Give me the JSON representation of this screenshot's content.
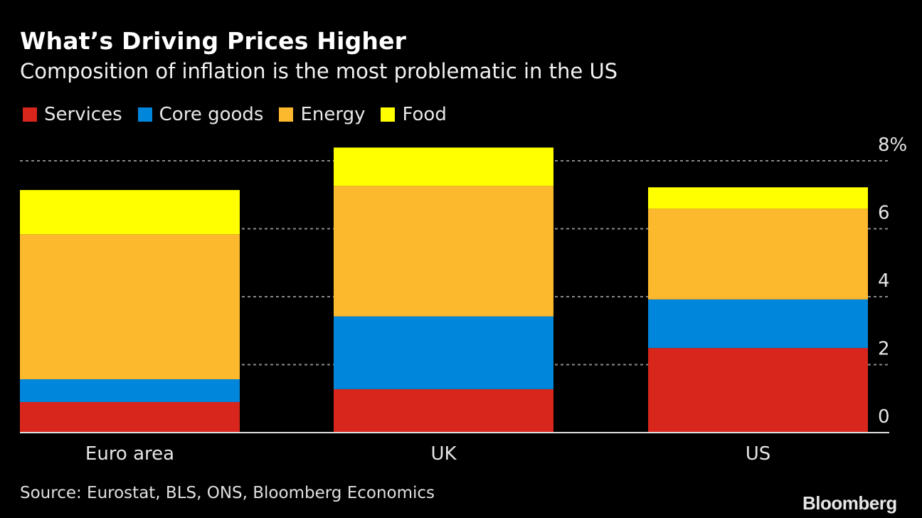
{
  "header": {
    "title": "What’s Driving Prices Higher",
    "subtitle": "Composition of inflation is the most problematic in the US"
  },
  "footer": {
    "source": "Source: Eurostat, BLS, ONS, Bloomberg Economics",
    "brand": "Bloomberg"
  },
  "chart_data": {
    "type": "bar",
    "stacked": true,
    "title": "What’s Driving Prices Higher",
    "subtitle": "Composition of inflation is the most problematic in the US",
    "categories": [
      "Euro area",
      "UK",
      "US"
    ],
    "series": [
      {
        "name": "Services",
        "color": "#d9261c",
        "values": [
          0.9,
          1.28,
          2.49
        ]
      },
      {
        "name": "Core goods",
        "color": "#0086db",
        "values": [
          0.67,
          2.14,
          1.43
        ]
      },
      {
        "name": "Energy",
        "color": "#fdb92e",
        "values": [
          4.27,
          3.84,
          2.67
        ]
      },
      {
        "name": "Food",
        "color": "#ffff00",
        "values": [
          1.3,
          1.13,
          0.63
        ]
      }
    ],
    "xlabel": "",
    "ylabel": "",
    "ylim": [
      0,
      8
    ],
    "yticks": [
      0,
      2,
      4,
      6,
      8
    ],
    "ytick_labels": [
      "0",
      "2",
      "4",
      "6",
      "8%"
    ],
    "y_axis_side": "right",
    "grid": true,
    "legend_position": "top-left",
    "source": "Source: Eurostat, BLS, ONS, Bloomberg Economics"
  }
}
